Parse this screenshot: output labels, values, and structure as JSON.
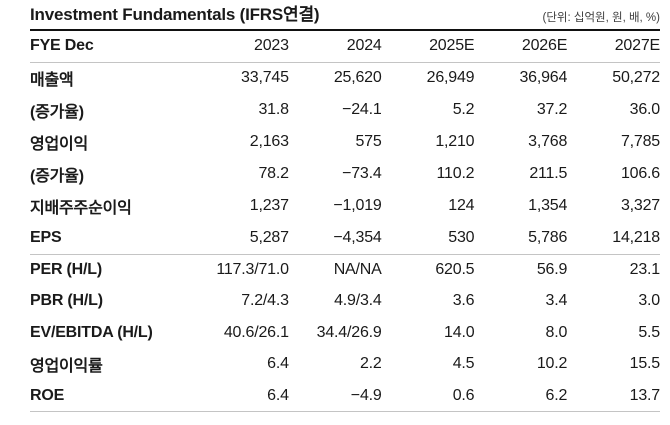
{
  "title": "Investment Fundamentals (IFRS연결)",
  "unit_note": "(단위: 십억원, 원, 배, %)",
  "colors": {
    "rule_dark": "#111111",
    "rule_light": "#c4c4c4",
    "text": "#1a1a1a",
    "muted": "#3d3d3d"
  },
  "table": {
    "header": [
      "FYE Dec",
      "2023",
      "2024",
      "2025E",
      "2026E",
      "2027E"
    ],
    "sections": [
      {
        "name": "earnings",
        "rows": [
          [
            "매출액",
            "33,745",
            "25,620",
            "26,949",
            "36,964",
            "50,272"
          ],
          [
            "(증가율)",
            "31.8",
            "−24.1",
            "5.2",
            "37.2",
            "36.0"
          ],
          [
            "영업이익",
            "2,163",
            "575",
            "1,210",
            "3,768",
            "7,785"
          ],
          [
            "(증가율)",
            "78.2",
            "−73.4",
            "110.2",
            "211.5",
            "106.6"
          ],
          [
            "지배주주순이익",
            "1,237",
            "−1,019",
            "124",
            "1,354",
            "3,327"
          ],
          [
            "EPS",
            "5,287",
            "−4,354",
            "530",
            "5,786",
            "14,218"
          ]
        ]
      },
      {
        "name": "valuation",
        "rows": [
          [
            "PER (H/L)",
            "117.3/71.0",
            "NA/NA",
            "620.5",
            "56.9",
            "23.1"
          ],
          [
            "PBR (H/L)",
            "7.2/4.3",
            "4.9/3.4",
            "3.6",
            "3.4",
            "3.0"
          ],
          [
            "EV/EBITDA (H/L)",
            "40.6/26.1",
            "34.4/26.9",
            "14.0",
            "8.0",
            "5.5"
          ],
          [
            "영업이익률",
            "6.4",
            "2.2",
            "4.5",
            "10.2",
            "15.5"
          ],
          [
            "ROE",
            "6.4",
            "−4.9",
            "0.6",
            "6.2",
            "13.7"
          ]
        ]
      }
    ]
  }
}
